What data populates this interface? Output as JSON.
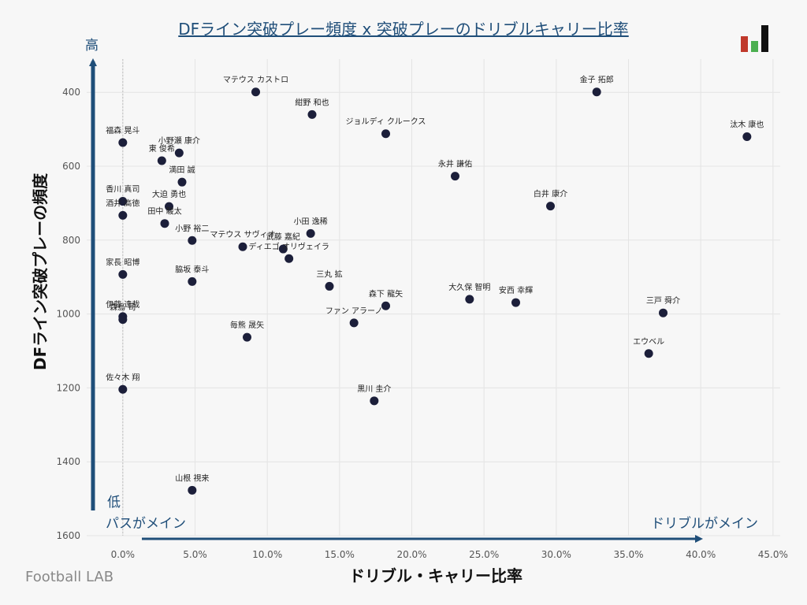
{
  "title": "DFライン突破プレー頻度 x 突破プレーのドリブルキャリー比率",
  "source": "Football LAB",
  "colors": {
    "point": "#1c1f3a",
    "arrow": "#1f4e79",
    "title": "#1f4e79",
    "grid": "#e4e4e4",
    "logo_red": "#c0392b",
    "logo_green": "#4caf50",
    "logo_dark": "#111111"
  },
  "hints": {
    "y_high": "高",
    "y_low": "低",
    "x_low": "パスがメイン",
    "x_high": "ドリブルがメイン"
  },
  "chart_data": {
    "type": "scatter",
    "title": "DFライン突破プレー頻度 x 突破プレーのドリブルキャリー比率",
    "xlabel": "ドリブル・キャリー比率",
    "ylabel": "DFライン突破プレーの頻度",
    "x_unit": "%",
    "xlim": [
      -2.5,
      45.5
    ],
    "ylim": [
      1600,
      310
    ],
    "y_inverted": true,
    "grid": true,
    "x_ticks": [
      "0.0%",
      "5.0%",
      "10.0%",
      "15.0%",
      "20.0%",
      "25.0%",
      "30.0%",
      "35.0%",
      "40.0%",
      "45.0%"
    ],
    "x_tick_values": [
      0,
      5,
      10,
      15,
      20,
      25,
      30,
      35,
      40,
      45
    ],
    "y_ticks": [
      "400",
      "600",
      "800",
      "1000",
      "1200",
      "1400",
      "1600"
    ],
    "y_tick_values": [
      400,
      600,
      800,
      1000,
      1200,
      1400,
      1600
    ],
    "points": [
      {
        "label": "マテウス カストロ",
        "x": 9.2,
        "y": 399
      },
      {
        "label": "紺野 和也",
        "x": 13.1,
        "y": 460
      },
      {
        "label": "ジョルディ クルークス",
        "x": 18.2,
        "y": 512
      },
      {
        "label": "金子 拓郎",
        "x": 32.8,
        "y": 399
      },
      {
        "label": "汰木 康也",
        "x": 43.2,
        "y": 520
      },
      {
        "label": "福森 晃斗",
        "x": 0.0,
        "y": 536
      },
      {
        "label": "小野瀬 康介",
        "x": 3.9,
        "y": 564
      },
      {
        "label": "東 俊希",
        "x": 2.7,
        "y": 585
      },
      {
        "label": "満田 誠",
        "x": 4.1,
        "y": 643
      },
      {
        "label": "永井 謙佑",
        "x": 23.0,
        "y": 627
      },
      {
        "label": "香川 真司",
        "x": 0.0,
        "y": 695
      },
      {
        "label": "大迫 勇也",
        "x": 3.2,
        "y": 709
      },
      {
        "label": "白井 康介",
        "x": 29.6,
        "y": 708
      },
      {
        "label": "酒井 高徳",
        "x": 0.0,
        "y": 733
      },
      {
        "label": "田中 駿太",
        "x": 2.9,
        "y": 755
      },
      {
        "label": "小野 裕二",
        "x": 4.8,
        "y": 801
      },
      {
        "label": "小田 逸稀",
        "x": 13.0,
        "y": 782
      },
      {
        "label": "マテウス サヴィオ",
        "x": 8.3,
        "y": 818
      },
      {
        "label": "武藤 嘉紀",
        "x": 11.1,
        "y": 824
      },
      {
        "label": "ディエゴ オリヴェイラ",
        "x": 11.5,
        "y": 850
      },
      {
        "label": "家長 昭博",
        "x": 0.0,
        "y": 893
      },
      {
        "label": "脇坂 泰斗",
        "x": 4.8,
        "y": 912
      },
      {
        "label": "三丸 拡",
        "x": 14.3,
        "y": 925
      },
      {
        "label": "大久保 智明",
        "x": 24.0,
        "y": 960
      },
      {
        "label": "森下 龍矢",
        "x": 18.2,
        "y": 978
      },
      {
        "label": "安西 幸輝",
        "x": 27.2,
        "y": 969
      },
      {
        "label": "三戸 舜介",
        "x": 37.4,
        "y": 997
      },
      {
        "label": "伊藤 達哉",
        "x": 0.0,
        "y": 1007
      },
      {
        "label": "森島 司",
        "x": 0.0,
        "y": 1015
      },
      {
        "label": "ファン アラーノ",
        "x": 16.0,
        "y": 1024
      },
      {
        "label": "毎熊 晟矢",
        "x": 8.6,
        "y": 1063
      },
      {
        "label": "エウベル",
        "x": 36.4,
        "y": 1107
      },
      {
        "label": "佐々木 翔",
        "x": 0.0,
        "y": 1204
      },
      {
        "label": "黒川 圭介",
        "x": 17.4,
        "y": 1235
      },
      {
        "label": "山根 視来",
        "x": 4.8,
        "y": 1477
      }
    ]
  }
}
